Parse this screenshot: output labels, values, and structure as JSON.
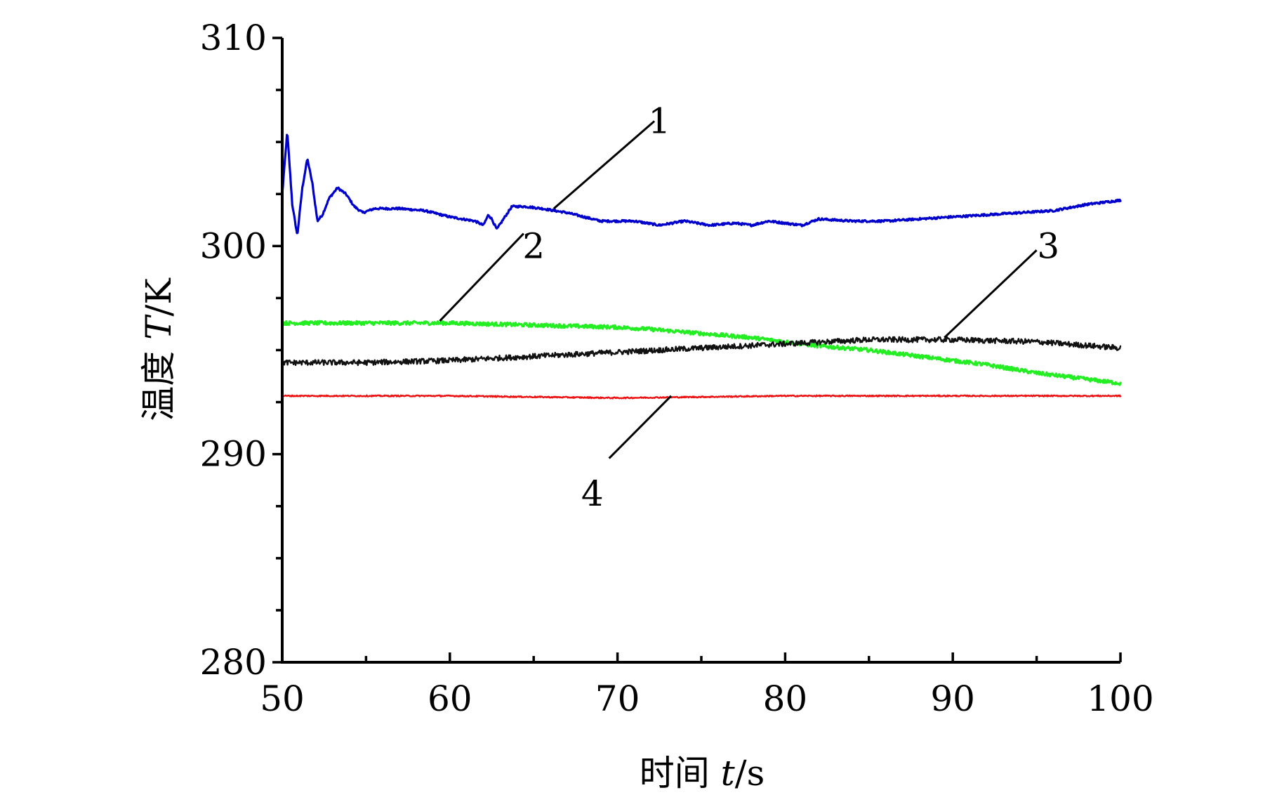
{
  "chart_data": {
    "type": "line",
    "xlabel_prefix": "时间 ",
    "xlabel_var": "t",
    "xlabel_unit": "/s",
    "ylabel_prefix": "温度 ",
    "ylabel_var": "T",
    "ylabel_unit": "/K",
    "xlim": [
      50,
      100
    ],
    "ylim": [
      280,
      310
    ],
    "x_ticks": [
      50,
      60,
      70,
      80,
      90,
      100
    ],
    "x_tick_labels": [
      "50",
      "60",
      "70",
      "80",
      "90",
      "100"
    ],
    "y_ticks": [
      280,
      290,
      300,
      310
    ],
    "y_tick_labels": [
      "280",
      "290",
      "300",
      "310"
    ],
    "grid": false,
    "legend": "none",
    "series": [
      {
        "label": "1",
        "color": "#0000cc",
        "x": [
          50,
          50.3,
          50.6,
          50.9,
          51.2,
          51.5,
          51.8,
          52.1,
          52.4,
          52.8,
          53.3,
          53.8,
          54.3,
          54.8,
          55.5,
          57,
          58.5,
          60,
          61.5,
          62,
          62.3,
          62.5,
          62.8,
          63.2,
          63.7,
          64.5,
          65.5,
          67,
          69,
          70,
          71,
          72.5,
          74,
          75.5,
          77,
          78,
          79,
          80,
          81,
          82,
          84,
          86,
          88,
          90,
          92,
          94,
          96,
          98,
          100
        ],
        "y": [
          302.5,
          305.5,
          302.0,
          300.5,
          302.8,
          304.2,
          303.0,
          301.2,
          301.5,
          302.3,
          302.8,
          302.5,
          301.9,
          301.6,
          301.8,
          301.8,
          301.7,
          301.4,
          301.2,
          301.0,
          301.5,
          301.3,
          300.8,
          301.3,
          301.9,
          301.9,
          301.8,
          301.6,
          301.2,
          301.2,
          301.2,
          301.0,
          301.2,
          301.0,
          301.1,
          301.0,
          301.2,
          301.1,
          301.0,
          301.3,
          301.2,
          301.2,
          301.3,
          301.4,
          301.5,
          301.6,
          301.7,
          302.0,
          302.2
        ]
      },
      {
        "label": "2",
        "color": "#22ee22",
        "x": [
          50,
          55,
          60,
          65,
          70,
          72,
          75,
          78,
          80,
          82,
          85,
          88,
          90,
          92,
          95,
          98,
          100
        ],
        "y": [
          296.3,
          296.3,
          296.3,
          296.2,
          296.1,
          296.0,
          295.8,
          295.6,
          295.4,
          295.2,
          295.0,
          294.7,
          294.5,
          294.3,
          293.9,
          293.6,
          293.4
        ]
      },
      {
        "label": "3",
        "color": "#111111",
        "x": [
          50,
          55,
          60,
          65,
          70,
          75,
          80,
          85,
          90,
          95,
          100
        ],
        "y": [
          294.4,
          294.4,
          294.5,
          294.7,
          294.9,
          295.1,
          295.3,
          295.5,
          295.5,
          295.4,
          295.1
        ]
      },
      {
        "label": "4",
        "color": "#ee1111",
        "x": [
          50,
          60,
          70,
          80,
          90,
          100
        ],
        "y": [
          292.8,
          292.8,
          292.7,
          292.8,
          292.8,
          292.8
        ]
      }
    ]
  }
}
